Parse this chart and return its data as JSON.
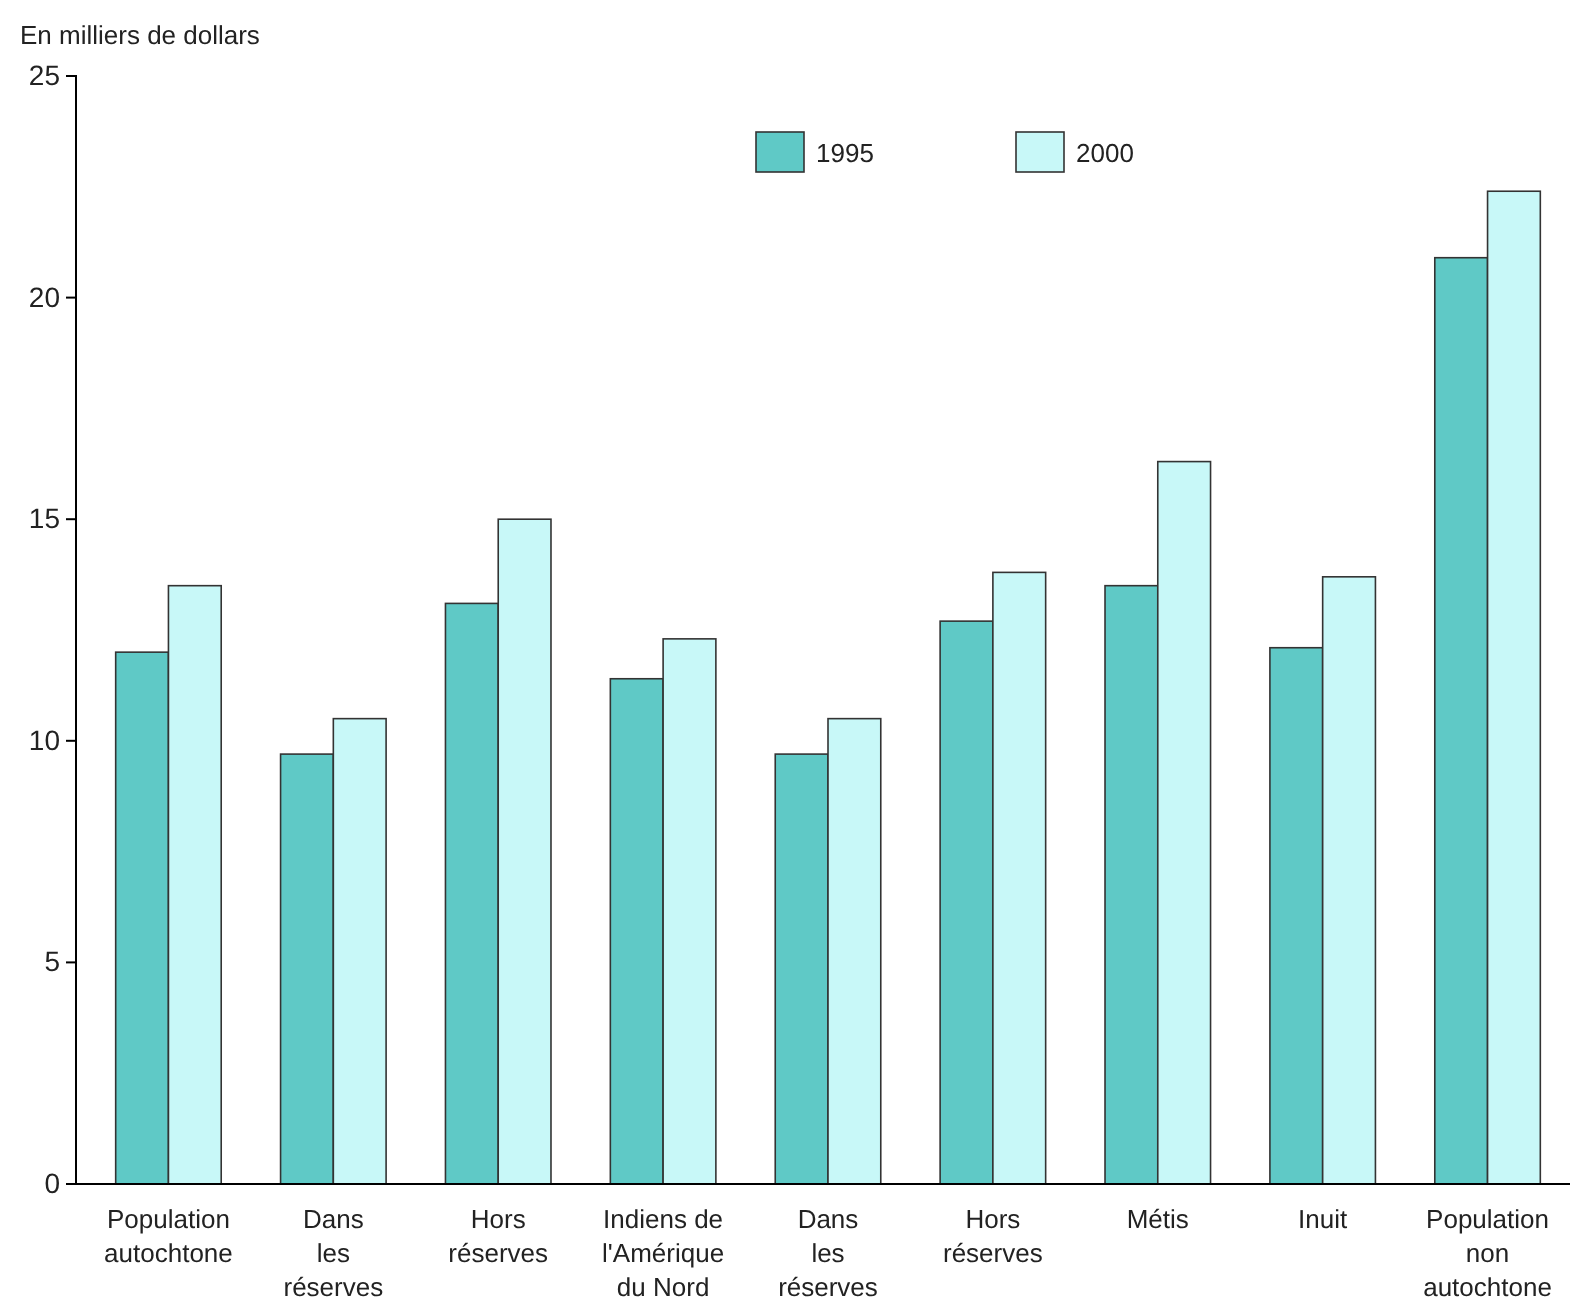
{
  "chart_data": {
    "type": "bar",
    "ylabel": "En milliers de dollars",
    "categories": [
      "Population\nautochtone",
      "Dans\nles\nréserves",
      "Hors\nréserves",
      "Indiens de\nl'Amérique\ndu Nord",
      "Dans\nles\nréserves",
      "Hors\nréserves",
      "Métis",
      "Inuit",
      "Population\nnon\nautochtone"
    ],
    "series": [
      {
        "name": "1995",
        "color": "#5fc9c6",
        "values": [
          12.0,
          9.7,
          13.1,
          11.4,
          9.7,
          12.7,
          13.5,
          12.1,
          20.9
        ]
      },
      {
        "name": "2000",
        "color": "#c8f8f8",
        "values": [
          13.5,
          10.5,
          15.0,
          12.3,
          10.5,
          13.8,
          16.3,
          13.7,
          22.4
        ]
      }
    ],
    "ylim": [
      0,
      25
    ],
    "yticks": [
      0,
      5,
      10,
      15,
      20,
      25
    ],
    "grid": false,
    "legend": "top"
  }
}
